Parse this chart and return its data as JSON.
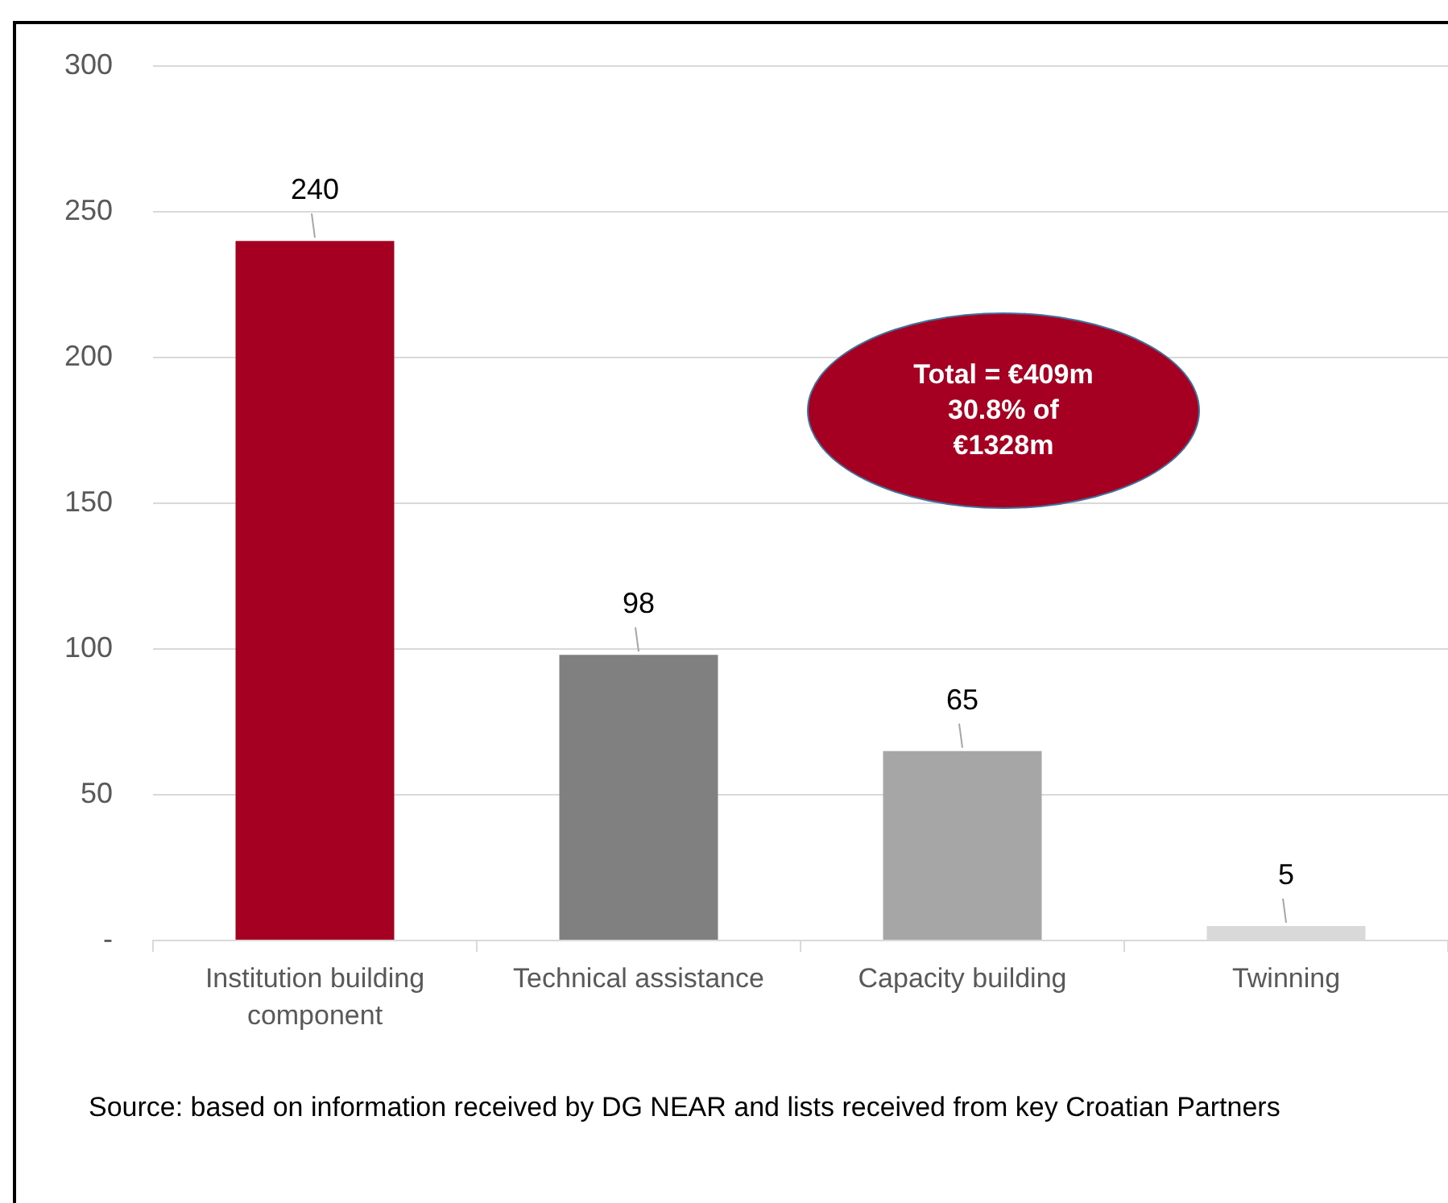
{
  "chart_data": {
    "type": "bar",
    "categories": [
      "Institution building component",
      "Technical assistance",
      "Capacity building",
      "Twinning"
    ],
    "values": [
      240,
      98,
      65,
      5
    ],
    "colors": [
      "#a50021",
      "#808080",
      "#a6a6a6",
      "#d9d9d9"
    ],
    "ylim": [
      0,
      300
    ],
    "yticks": [
      {
        "value": 0,
        "label": "-"
      },
      50,
      100,
      150,
      200,
      250,
      300
    ],
    "grid": "y",
    "data_labels": true,
    "annotations": [
      "Total = €409m 30.8% of €1328m",
      "Source: based on information received by DG NEAR and lists received from key Croatian Partners"
    ]
  }
}
